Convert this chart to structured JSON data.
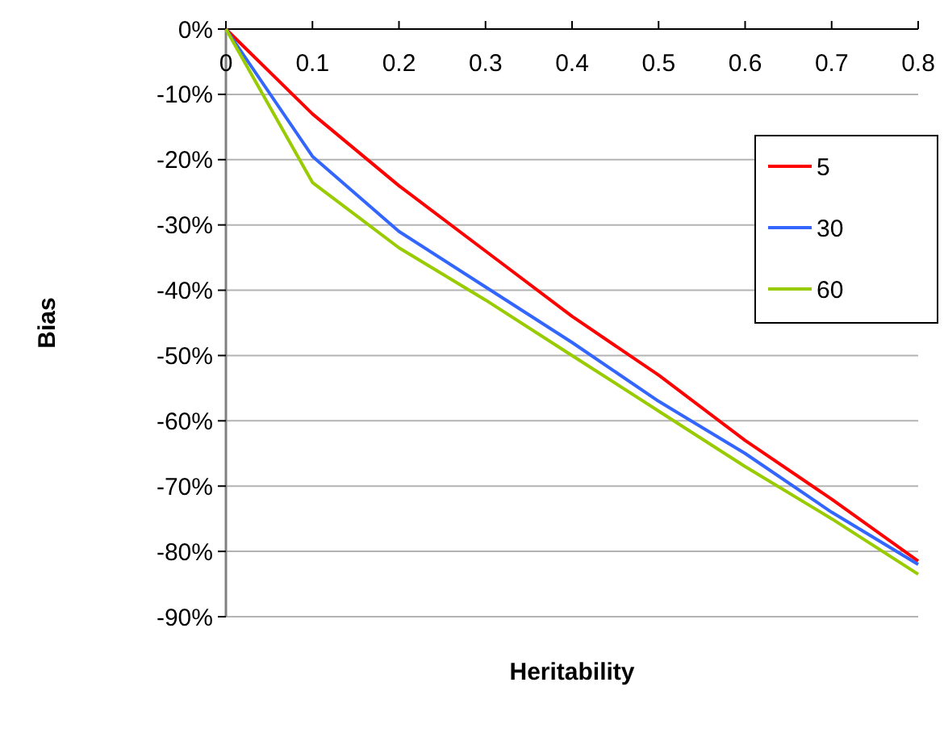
{
  "chart_data": {
    "type": "line",
    "xlabel": "Heritability",
    "ylabel": "Bias",
    "x": [
      0,
      0.1,
      0.2,
      0.3,
      0.4,
      0.5,
      0.6,
      0.7,
      0.8
    ],
    "series": [
      {
        "name": "5",
        "color": "#ff0000",
        "values": [
          0,
          -13,
          -24,
          -34,
          -44,
          -53,
          -63,
          -72,
          -81.5
        ]
      },
      {
        "name": "30",
        "color": "#3366ff",
        "values": [
          0,
          -19.5,
          -31,
          -39.5,
          -48,
          -57,
          -65,
          -74,
          -82
        ]
      },
      {
        "name": "60",
        "color": "#99cc00",
        "values": [
          0,
          -23.5,
          -33.5,
          -41.5,
          -50,
          -58.5,
          -67,
          -75,
          -83.5
        ]
      }
    ],
    "xlim": [
      0,
      0.8
    ],
    "xticks": [
      0,
      0.1,
      0.2,
      0.3,
      0.4,
      0.5,
      0.6,
      0.7,
      0.8
    ],
    "ylim": [
      -90,
      0
    ],
    "yticks": [
      {
        "value": 0,
        "label": "0%"
      },
      {
        "value": -10,
        "label": "-10%"
      },
      {
        "value": -20,
        "label": "-20%"
      },
      {
        "value": -30,
        "label": "-30%"
      },
      {
        "value": -40,
        "label": "-40%"
      },
      {
        "value": -50,
        "label": "-50%"
      },
      {
        "value": -60,
        "label": "-60%"
      },
      {
        "value": -70,
        "label": "-70%"
      },
      {
        "value": -80,
        "label": "-80%"
      },
      {
        "value": -90,
        "label": "-90%"
      }
    ],
    "grid": "y",
    "legend": "right",
    "marker": "none",
    "line_style": "solid"
  }
}
